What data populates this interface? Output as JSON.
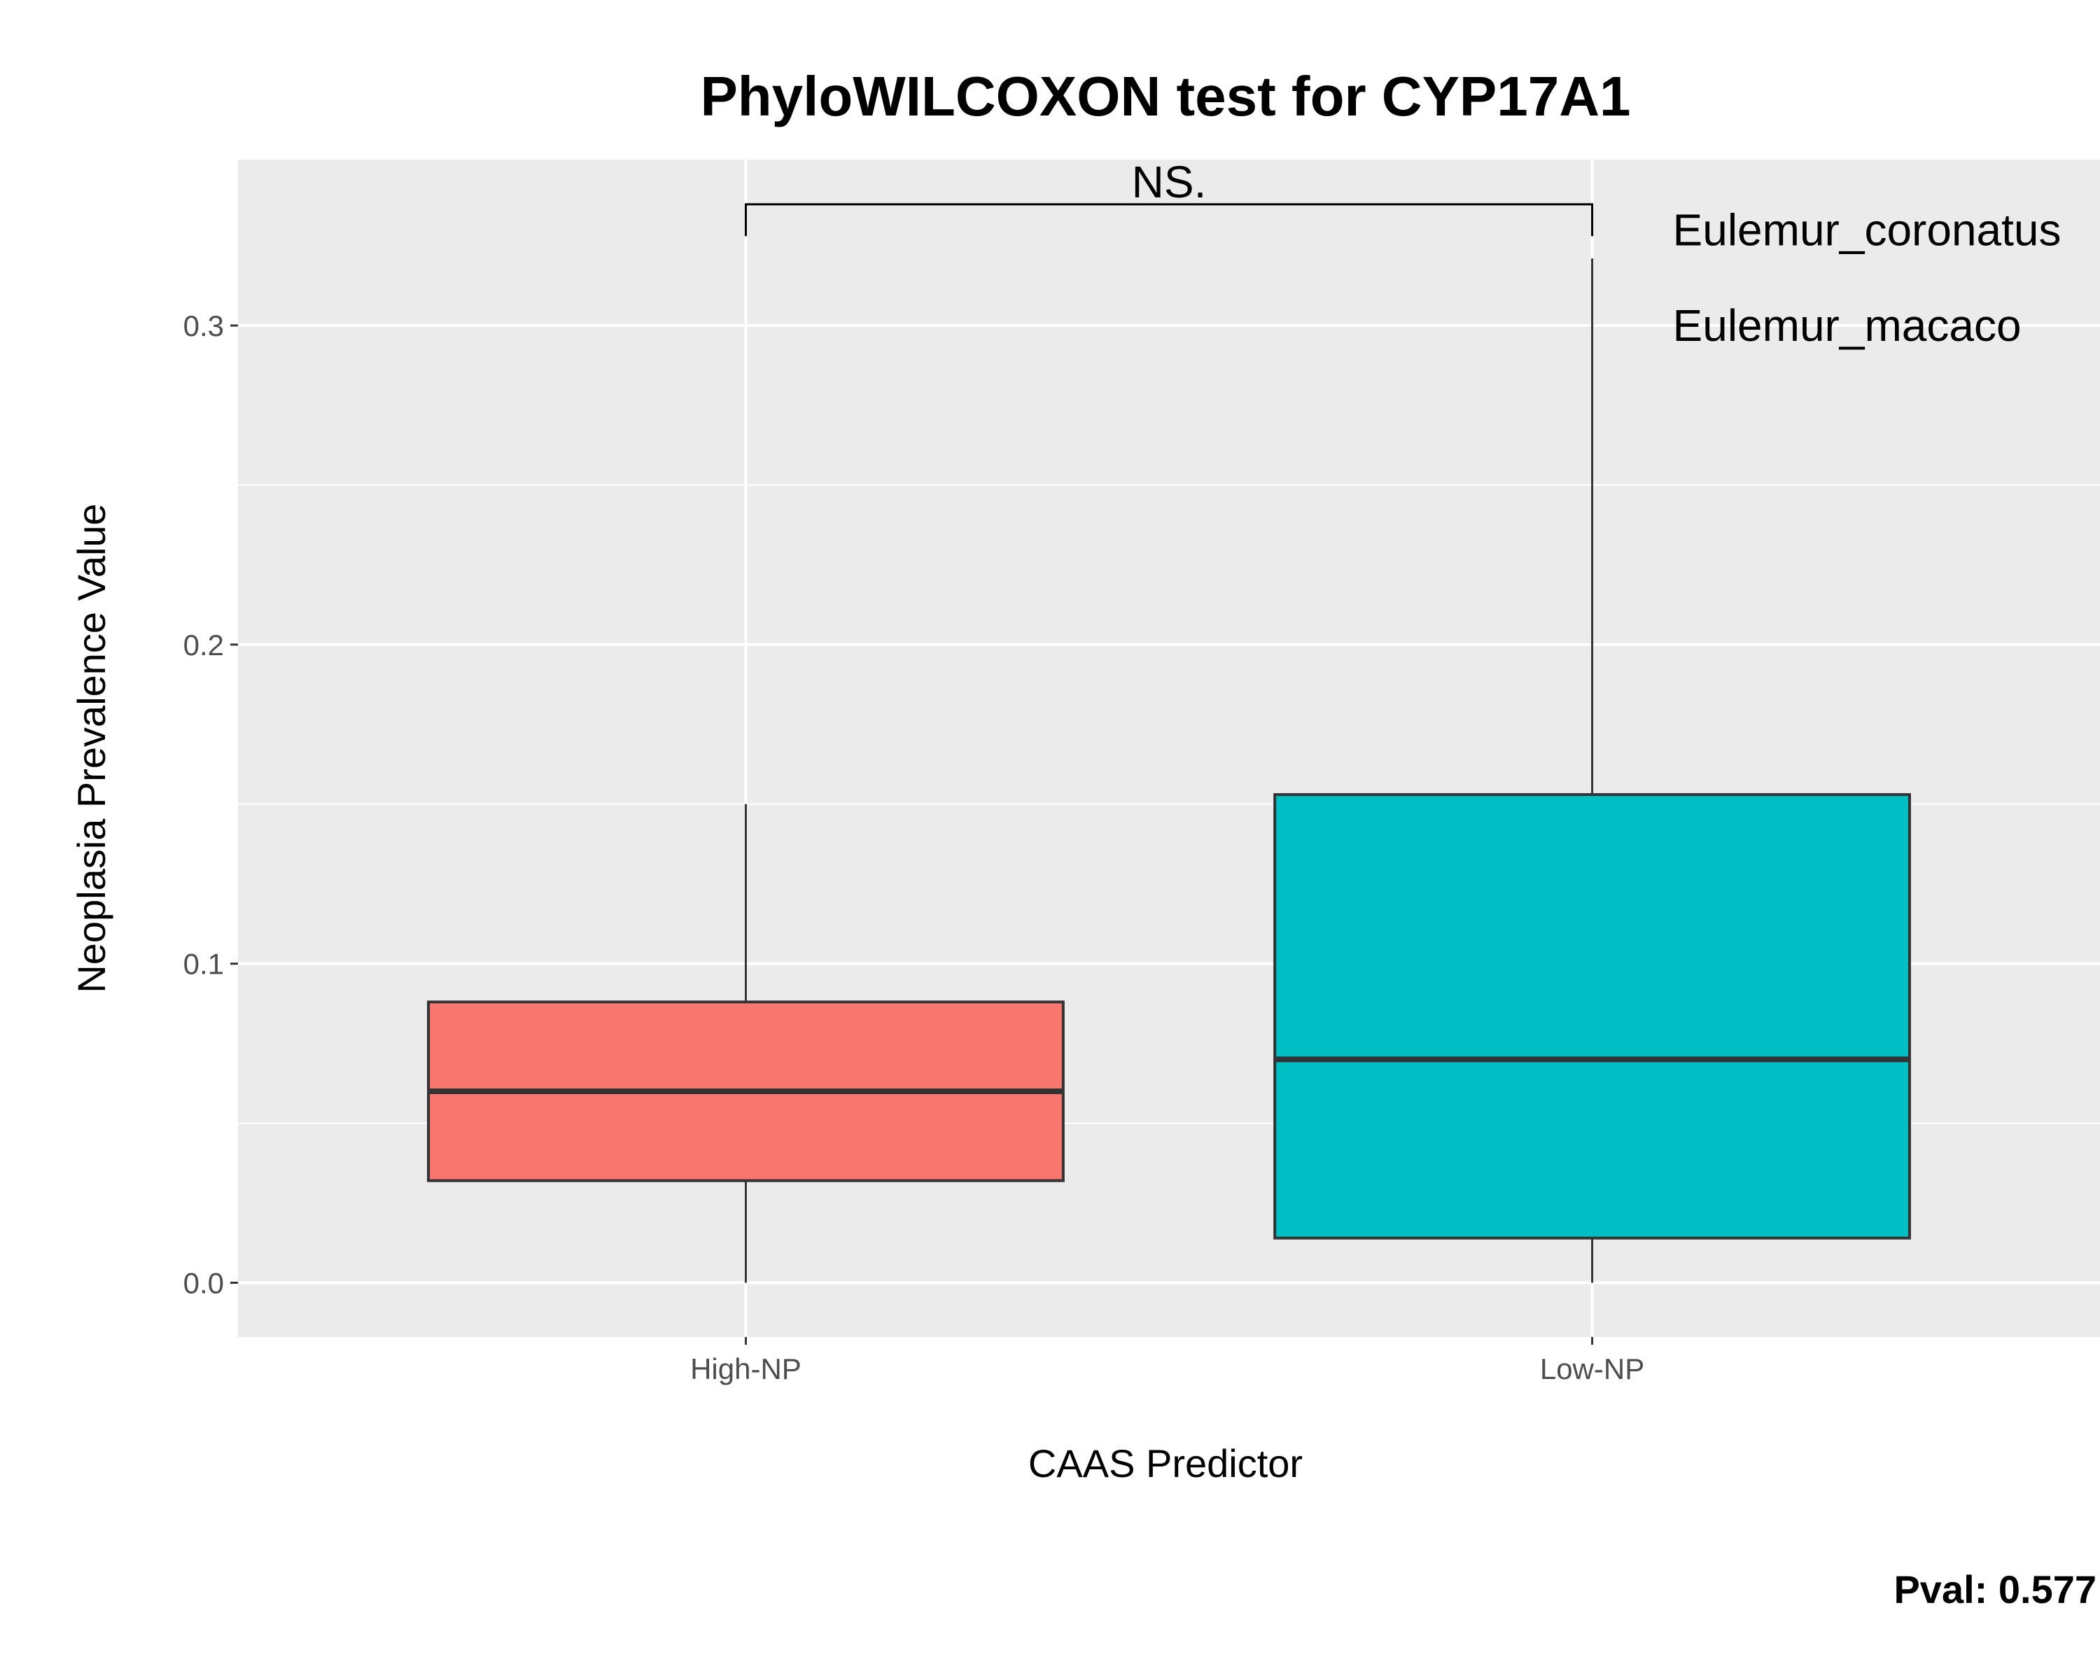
{
  "chart_data": {
    "type": "boxplot",
    "title": "PhyloWILCOXON test for CYP17A1",
    "xlabel": "CAAS Predictor",
    "ylabel": "Neoplasia Prevalence Value",
    "categories": [
      "High-NP",
      "Low-NP"
    ],
    "ylim": [
      -0.017,
      0.352
    ],
    "yticks": [
      0.0,
      0.1,
      0.2,
      0.3
    ],
    "ytick_labels": [
      "0.0",
      "0.1",
      "0.2",
      "0.3"
    ],
    "grid": true,
    "boxes": [
      {
        "category": "High-NP",
        "min": 0.0,
        "q1": 0.032,
        "median": 0.06,
        "q3": 0.088,
        "max": 0.15,
        "color": "#F8766D"
      },
      {
        "category": "Low-NP",
        "min": 0.0,
        "q1": 0.014,
        "median": 0.07,
        "q3": 0.153,
        "max": 0.321,
        "color": "#00BFC4"
      }
    ],
    "significance": {
      "label": "NS.",
      "y": 0.338,
      "tick_bottom": 0.328
    },
    "point_labels": [
      {
        "text": "Eulemur_coronatus",
        "x": "Low-NP",
        "y": 0.33
      },
      {
        "text": "Eulemur_macaco",
        "x": "Low-NP",
        "y": 0.3
      }
    ],
    "footer": {
      "pval_label": "Pval:  0.577"
    }
  }
}
